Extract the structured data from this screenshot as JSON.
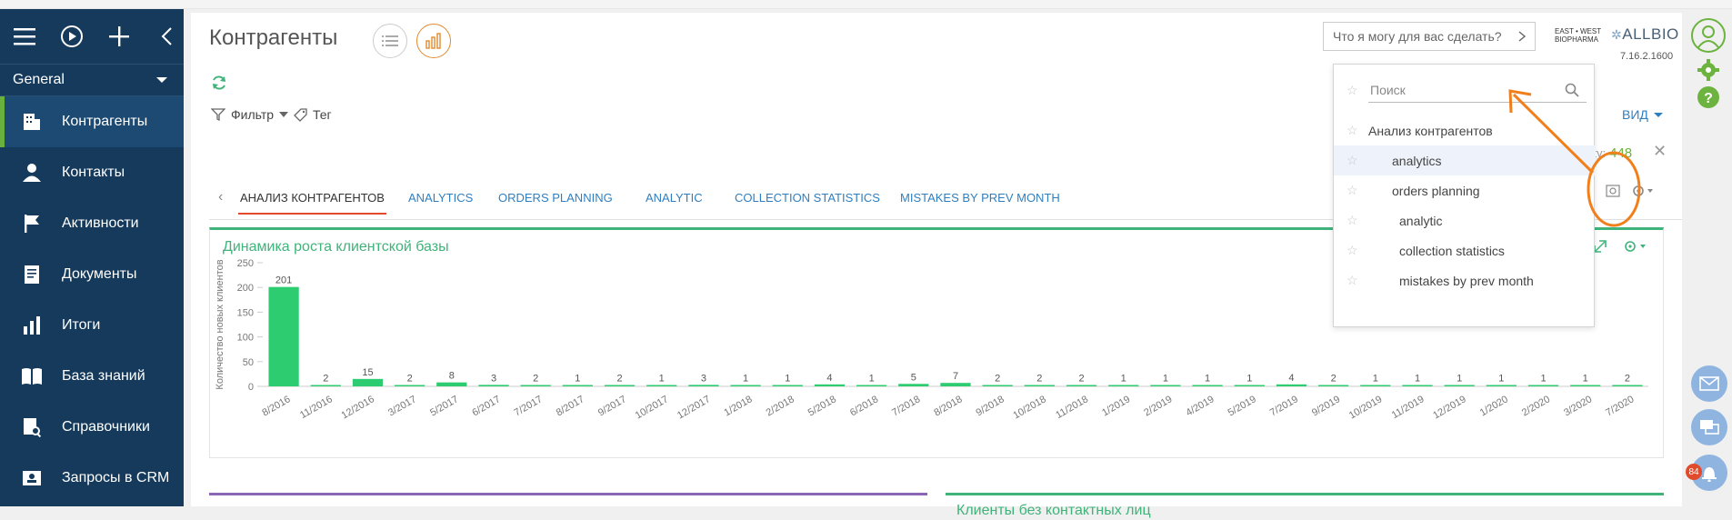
{
  "sidebar": {
    "workspace": "General",
    "items": [
      {
        "label": "Контрагенты",
        "icon": "building-icon",
        "active": true
      },
      {
        "label": "Контакты",
        "icon": "person-icon"
      },
      {
        "label": "Активности",
        "icon": "flag-icon"
      },
      {
        "label": "Документы",
        "icon": "document-icon"
      },
      {
        "label": "Итоги",
        "icon": "bar-chart-icon"
      },
      {
        "label": "База знаний",
        "icon": "book-icon"
      },
      {
        "label": "Справочники",
        "icon": "lookup-icon"
      },
      {
        "label": "Запросы в CRM",
        "icon": "request-icon"
      }
    ]
  },
  "header": {
    "title": "Контрагенты",
    "ask_placeholder": "Что я могу для вас сделать?",
    "logo_small_1": "EAST • WEST",
    "logo_small_2": "BIOPHARMA",
    "logo_main": "ALLBIO",
    "version": "7.16.2.1600"
  },
  "toolbar": {
    "filter": "Фильтр",
    "tag": "Тег",
    "view": "ВИД",
    "activity_label": "ctivity:",
    "activity_value": "448"
  },
  "tabs": [
    {
      "label": "АНАЛИЗ КОНТРАГЕНТОВ",
      "active": true
    },
    {
      "label": "ANALYTICS"
    },
    {
      "label": "ORDERS PLANNING"
    },
    {
      "label": "ANALYTIC"
    },
    {
      "label": "COLLECTION STATISTICS"
    },
    {
      "label": "MISTAKES BY PREV MONTH"
    }
  ],
  "dropdown": {
    "search_placeholder": "Поиск",
    "items": [
      {
        "label": "Анализ контрагентов"
      },
      {
        "label": "analytics",
        "selected": true
      },
      {
        "label": "orders planning"
      },
      {
        "label": "analytic"
      },
      {
        "label": "collection statistics"
      },
      {
        "label": "mistakes by prev month"
      }
    ]
  },
  "bottom": {
    "right_title": "Клиенты без контактных лиц"
  },
  "rail": {
    "notification_count": "84"
  },
  "colors": {
    "sidebar": "#153a5b",
    "accent_green": "#3fb37a",
    "bar_green": "#2ecc71",
    "link_blue": "#2f7fc0",
    "active_tab_line": "#e24a2c",
    "annotation_orange": "#f07f1c"
  },
  "chart_data": {
    "type": "bar",
    "title": "Динамика роста клиентской базы",
    "ylabel": "Количество новых клиентов",
    "xlabel": "",
    "ylim": [
      0,
      250
    ],
    "yticks": [
      0,
      50,
      100,
      150,
      200,
      250
    ],
    "categories": [
      "8/2016",
      "11/2016",
      "12/2016",
      "3/2017",
      "5/2017",
      "6/2017",
      "7/2017",
      "8/2017",
      "9/2017",
      "10/2017",
      "12/2017",
      "1/2018",
      "2/2018",
      "5/2018",
      "6/2018",
      "7/2018",
      "8/2018",
      "9/2018",
      "10/2018",
      "11/2018",
      "1/2019",
      "2/2019",
      "4/2019",
      "5/2019",
      "7/2019",
      "9/2019",
      "10/2019",
      "11/2019",
      "12/2019",
      "1/2020",
      "2/2020",
      "3/2020",
      "7/2020"
    ],
    "values": [
      201,
      2,
      15,
      2,
      8,
      3,
      2,
      1,
      2,
      1,
      3,
      1,
      1,
      4,
      1,
      5,
      7,
      2,
      2,
      2,
      1,
      1,
      1,
      1,
      4,
      2,
      1,
      1,
      1,
      1,
      1,
      1,
      2
    ],
    "grid": false,
    "legend": "none"
  }
}
